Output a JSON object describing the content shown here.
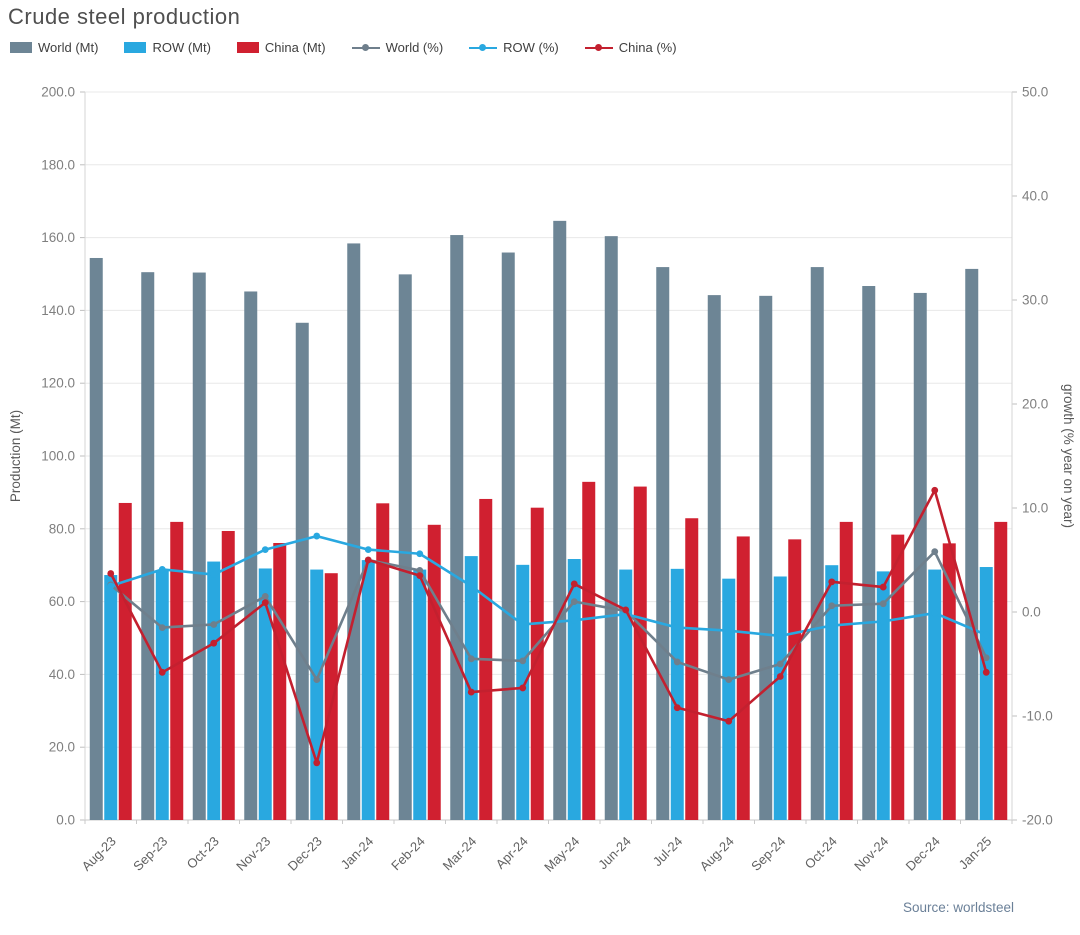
{
  "title": "Crude steel production",
  "source": "Source: worldsteel",
  "legend": [
    {
      "label": "World (Mt)",
      "type": "bar",
      "color": "#6d8595"
    },
    {
      "label": "ROW (Mt)",
      "type": "bar",
      "color": "#29a8e0"
    },
    {
      "label": "China (Mt)",
      "type": "bar",
      "color": "#d02030"
    },
    {
      "label": "World (%)",
      "type": "line",
      "color": "#6f7f8c"
    },
    {
      "label": "ROW (%)",
      "type": "line",
      "color": "#29a8e0"
    },
    {
      "label": "China (%)",
      "type": "line",
      "color": "#c3202f"
    }
  ],
  "chart_data": {
    "type": "bar",
    "subtype": "grouped-bars-with-lines",
    "title": "Crude steel production",
    "categories": [
      "Aug-23",
      "Sep-23",
      "Oct-23",
      "Nov-23",
      "Dec-23",
      "Jan-24",
      "Feb-24",
      "Mar-24",
      "Apr-24",
      "May-24",
      "Jun-24",
      "Jul-24",
      "Aug-24",
      "Sep-24",
      "Oct-24",
      "Nov-24",
      "Dec-24",
      "Jan-25"
    ],
    "series": [
      {
        "name": "World (Mt)",
        "type": "bar",
        "axis": "left",
        "color": "#6d8595",
        "values": [
          154.4,
          150.5,
          150.4,
          145.2,
          136.6,
          158.4,
          149.9,
          160.7,
          155.9,
          164.6,
          160.4,
          151.9,
          144.2,
          144.0,
          151.9,
          146.7,
          144.8,
          151.4
        ]
      },
      {
        "name": "ROW (Mt)",
        "type": "bar",
        "axis": "left",
        "color": "#29a8e0",
        "values": [
          67.3,
          68.6,
          71.0,
          69.1,
          68.8,
          71.4,
          68.8,
          72.5,
          70.1,
          71.7,
          68.8,
          69.0,
          66.3,
          66.9,
          70.0,
          68.3,
          68.8,
          69.5
        ]
      },
      {
        "name": "China (Mt)",
        "type": "bar",
        "axis": "left",
        "color": "#d02030",
        "values": [
          87.1,
          81.9,
          79.4,
          76.1,
          67.8,
          87.0,
          81.1,
          88.2,
          85.8,
          92.9,
          91.6,
          82.9,
          77.9,
          77.1,
          81.9,
          78.4,
          76.0,
          81.9
        ]
      },
      {
        "name": "World (%)",
        "type": "line",
        "axis": "right",
        "color": "#6f7f8c",
        "values": [
          2.6,
          -1.5,
          -1.2,
          1.5,
          -6.5,
          5.0,
          4.0,
          -4.5,
          -4.7,
          1.0,
          0.1,
          -4.8,
          -6.5,
          -5.0,
          0.6,
          0.8,
          5.8,
          -4.4
        ]
      },
      {
        "name": "ROW (%)",
        "type": "line",
        "axis": "right",
        "color": "#29a8e0",
        "values": [
          2.5,
          4.1,
          3.6,
          6.0,
          7.3,
          6.0,
          5.6,
          2.5,
          -1.2,
          -0.8,
          -0.2,
          -1.5,
          -1.8,
          -2.3,
          -1.3,
          -0.9,
          -0.1,
          -2.2
        ]
      },
      {
        "name": "China (%)",
        "type": "line",
        "axis": "right",
        "color": "#c3202f",
        "values": [
          3.7,
          -5.8,
          -3.0,
          0.9,
          -14.5,
          5.0,
          3.5,
          -7.7,
          -7.3,
          2.7,
          0.2,
          -9.2,
          -10.5,
          -6.2,
          2.9,
          2.4,
          11.7,
          -5.8
        ]
      }
    ],
    "left_axis": {
      "label": "Production (Mt)",
      "min": 0,
      "max": 200,
      "step": 20
    },
    "right_axis": {
      "label": "growth (% year on year)",
      "min": -20,
      "max": 50,
      "step": 10
    },
    "grid": true,
    "legend_position": "top"
  }
}
